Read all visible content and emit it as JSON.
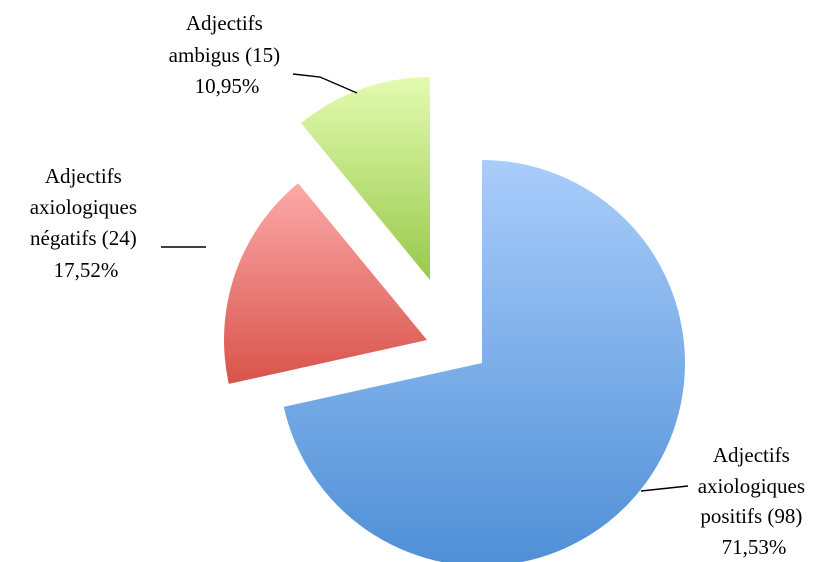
{
  "chart_data": {
    "type": "pie",
    "exploded": true,
    "legend": "none",
    "slices": [
      {
        "category": "Adjectifs axiologiques positifs",
        "count": 98,
        "percent": 71.53,
        "label_lines": [
          "Adjectifs",
          "axiologiques",
          "positifs (98)",
          "71,53%"
        ],
        "color_top": "#a9cdfb",
        "color_bottom": "#4f8fd6"
      },
      {
        "category": "Adjectifs axiologiques négatifs",
        "count": 24,
        "percent": 17.52,
        "label_lines": [
          "Adjectifs",
          "axiologiques",
          "négatifs (24)",
          "17,52%"
        ],
        "color_top": "#fbaaa8",
        "color_bottom": "#d9534b"
      },
      {
        "category": "Adjectifs ambigus",
        "count": 15,
        "percent": 10.95,
        "label_lines": [
          "Adjectifs",
          "ambigus (15)",
          "10,95%"
        ],
        "color_top": "#e3fbb0",
        "color_bottom": "#98c94a"
      }
    ]
  }
}
